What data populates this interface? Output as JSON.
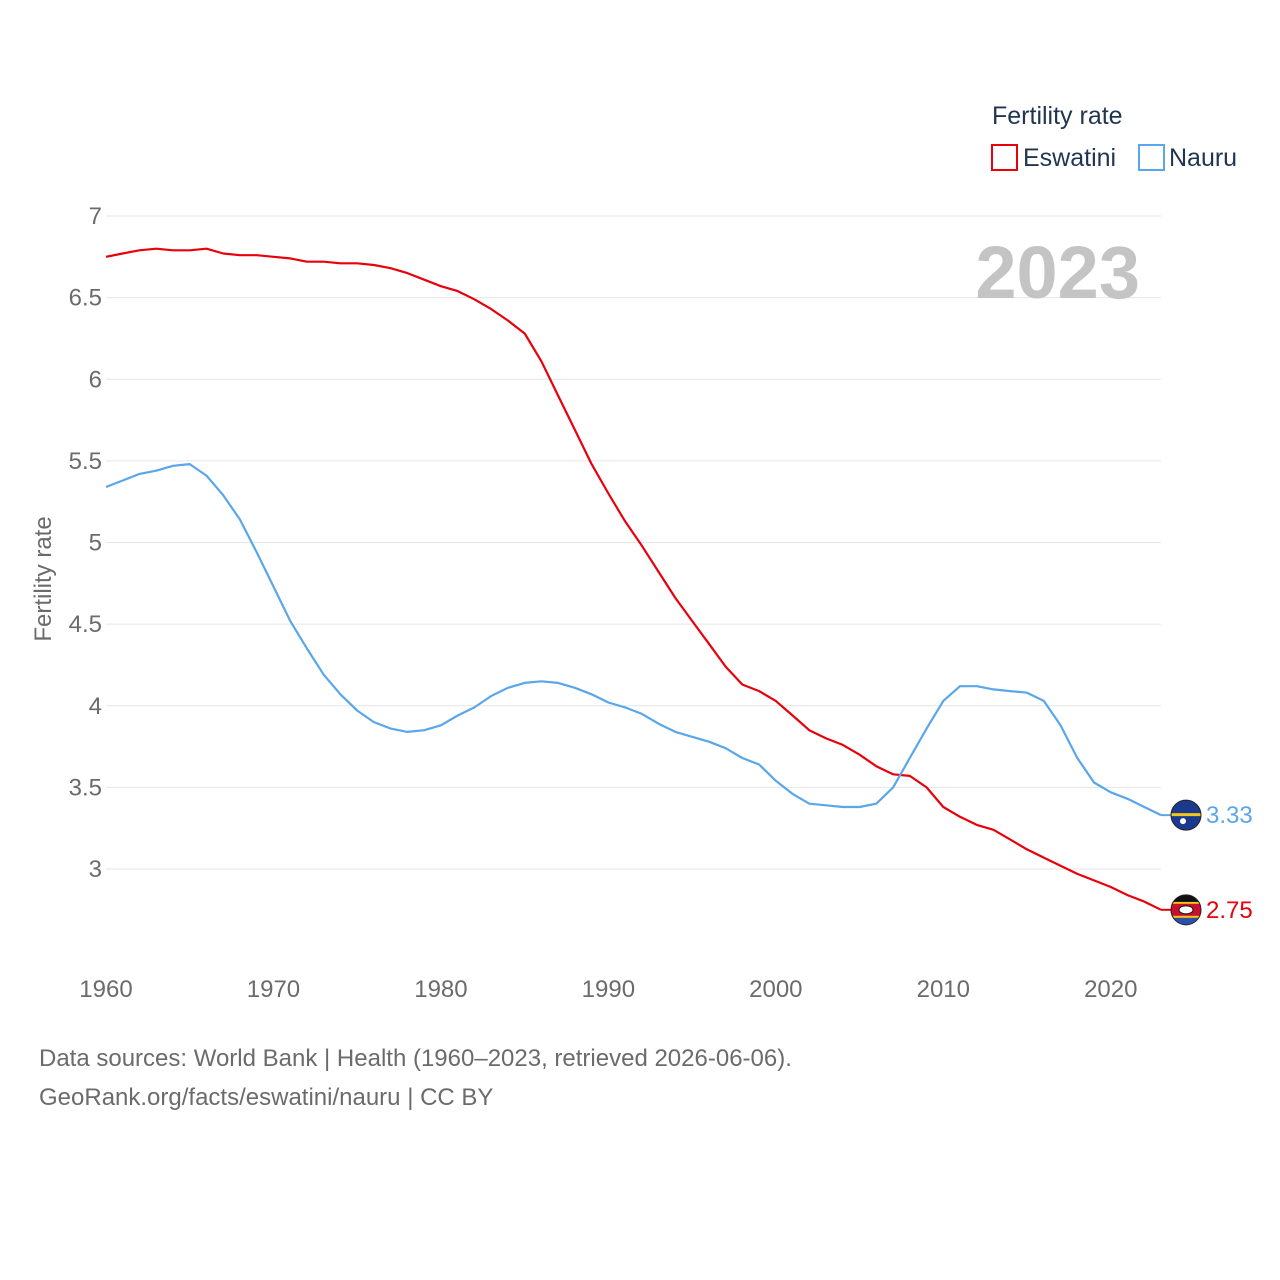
{
  "chart_data": {
    "type": "line",
    "legend_title": "Fertility rate",
    "ylabel": "Fertility rate",
    "xlabel": "",
    "year_label": "2023",
    "ylim": [
      2.5,
      7.0
    ],
    "xlim": [
      1960,
      2023
    ],
    "yticks": [
      3,
      3.5,
      4,
      4.5,
      5,
      5.5,
      6,
      6.5,
      7
    ],
    "ytick_labels": [
      "3",
      "3.5",
      "4",
      "4.5",
      "5",
      "5.5",
      "6",
      "6.5",
      "7"
    ],
    "xticks": [
      1960,
      1970,
      1980,
      1990,
      2000,
      2010,
      2020
    ],
    "xtick_labels": [
      "1960",
      "1970",
      "1980",
      "1990",
      "2000",
      "2010",
      "2020"
    ],
    "legend_position": "top-right",
    "series": [
      {
        "name": "Eswatini",
        "color": "#e8000b",
        "end_label": "2.75",
        "flag_icon": "eswatini-flag-icon",
        "points": [
          [
            1960,
            6.75
          ],
          [
            1961,
            6.77
          ],
          [
            1962,
            6.79
          ],
          [
            1963,
            6.8
          ],
          [
            1964,
            6.79
          ],
          [
            1965,
            6.79
          ],
          [
            1966,
            6.8
          ],
          [
            1967,
            6.77
          ],
          [
            1968,
            6.76
          ],
          [
            1969,
            6.76
          ],
          [
            1970,
            6.75
          ],
          [
            1971,
            6.74
          ],
          [
            1972,
            6.72
          ],
          [
            1973,
            6.72
          ],
          [
            1974,
            6.71
          ],
          [
            1975,
            6.71
          ],
          [
            1976,
            6.7
          ],
          [
            1977,
            6.68
          ],
          [
            1978,
            6.65
          ],
          [
            1979,
            6.61
          ],
          [
            1980,
            6.57
          ],
          [
            1981,
            6.54
          ],
          [
            1982,
            6.49
          ],
          [
            1983,
            6.43
          ],
          [
            1984,
            6.36
          ],
          [
            1985,
            6.28
          ],
          [
            1986,
            6.11
          ],
          [
            1987,
            5.9
          ],
          [
            1988,
            5.69
          ],
          [
            1989,
            5.48
          ],
          [
            1990,
            5.3
          ],
          [
            1991,
            5.13
          ],
          [
            1992,
            4.98
          ],
          [
            1993,
            4.82
          ],
          [
            1994,
            4.66
          ],
          [
            1995,
            4.52
          ],
          [
            1996,
            4.38
          ],
          [
            1997,
            4.24
          ],
          [
            1998,
            4.13
          ],
          [
            1999,
            4.09
          ],
          [
            2000,
            4.03
          ],
          [
            2001,
            3.94
          ],
          [
            2002,
            3.85
          ],
          [
            2003,
            3.8
          ],
          [
            2004,
            3.76
          ],
          [
            2005,
            3.7
          ],
          [
            2006,
            3.63
          ],
          [
            2007,
            3.58
          ],
          [
            2008,
            3.57
          ],
          [
            2009,
            3.5
          ],
          [
            2010,
            3.38
          ],
          [
            2011,
            3.32
          ],
          [
            2012,
            3.27
          ],
          [
            2013,
            3.24
          ],
          [
            2014,
            3.18
          ],
          [
            2015,
            3.12
          ],
          [
            2016,
            3.07
          ],
          [
            2017,
            3.02
          ],
          [
            2018,
            2.97
          ],
          [
            2019,
            2.93
          ],
          [
            2020,
            2.89
          ],
          [
            2021,
            2.84
          ],
          [
            2022,
            2.8
          ],
          [
            2023,
            2.75
          ]
        ]
      },
      {
        "name": "Nauru",
        "color": "#5aa6ea",
        "end_label": "3.33",
        "flag_icon": "nauru-flag-icon",
        "points": [
          [
            1960,
            5.34
          ],
          [
            1961,
            5.38
          ],
          [
            1962,
            5.42
          ],
          [
            1963,
            5.44
          ],
          [
            1964,
            5.47
          ],
          [
            1965,
            5.48
          ],
          [
            1966,
            5.41
          ],
          [
            1967,
            5.29
          ],
          [
            1968,
            5.14
          ],
          [
            1969,
            4.94
          ],
          [
            1970,
            4.73
          ],
          [
            1971,
            4.52
          ],
          [
            1972,
            4.35
          ],
          [
            1973,
            4.19
          ],
          [
            1974,
            4.07
          ],
          [
            1975,
            3.97
          ],
          [
            1976,
            3.9
          ],
          [
            1977,
            3.86
          ],
          [
            1978,
            3.84
          ],
          [
            1979,
            3.85
          ],
          [
            1980,
            3.88
          ],
          [
            1981,
            3.94
          ],
          [
            1982,
            3.99
          ],
          [
            1983,
            4.06
          ],
          [
            1984,
            4.11
          ],
          [
            1985,
            4.14
          ],
          [
            1986,
            4.15
          ],
          [
            1987,
            4.14
          ],
          [
            1988,
            4.11
          ],
          [
            1989,
            4.07
          ],
          [
            1990,
            4.02
          ],
          [
            1991,
            3.99
          ],
          [
            1992,
            3.95
          ],
          [
            1993,
            3.89
          ],
          [
            1994,
            3.84
          ],
          [
            1995,
            3.81
          ],
          [
            1996,
            3.78
          ],
          [
            1997,
            3.74
          ],
          [
            1998,
            3.68
          ],
          [
            1999,
            3.64
          ],
          [
            2000,
            3.54
          ],
          [
            2001,
            3.46
          ],
          [
            2002,
            3.4
          ],
          [
            2003,
            3.39
          ],
          [
            2004,
            3.38
          ],
          [
            2005,
            3.38
          ],
          [
            2006,
            3.4
          ],
          [
            2007,
            3.5
          ],
          [
            2008,
            3.68
          ],
          [
            2009,
            3.86
          ],
          [
            2010,
            4.03
          ],
          [
            2011,
            4.12
          ],
          [
            2012,
            4.12
          ],
          [
            2013,
            4.1
          ],
          [
            2014,
            4.09
          ],
          [
            2015,
            4.08
          ],
          [
            2016,
            4.03
          ],
          [
            2017,
            3.88
          ],
          [
            2018,
            3.68
          ],
          [
            2019,
            3.53
          ],
          [
            2020,
            3.47
          ],
          [
            2021,
            3.43
          ],
          [
            2022,
            3.38
          ],
          [
            2023,
            3.33
          ]
        ]
      }
    ]
  },
  "footer": {
    "source_line": "Data sources: World Bank | Health (1960–2023, retrieved 2026-06-06).",
    "link_line": "GeoRank.org/facts/eswatini/nauru | CC BY"
  }
}
